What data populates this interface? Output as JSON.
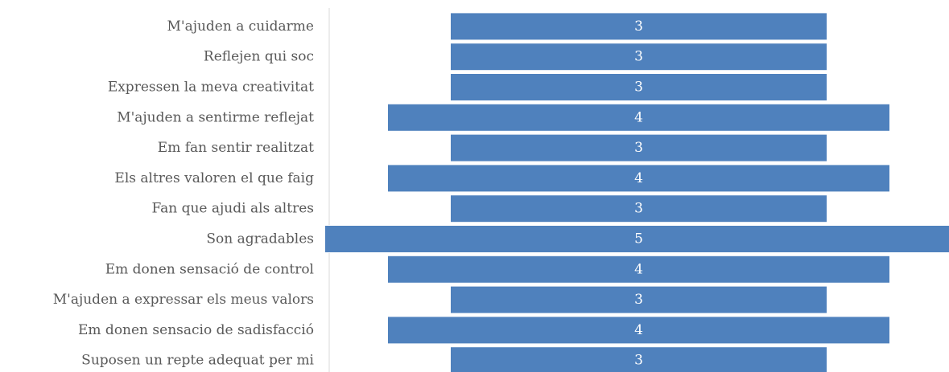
{
  "chart_data": {
    "type": "bar",
    "orientation": "horizontal",
    "centered": true,
    "categories": [
      "M'ajuden a cuidarme",
      "Reflejen qui soc",
      "Expressen la meva creativitat",
      "M'ajuden a sentirme reflejat",
      "Em fan sentir realitzat",
      "Els altres valoren el que faig",
      "Fan que ajudi als altres",
      "Son agradables",
      "Em donen sensació de control",
      "M'ajuden a expressar els meus valors",
      "Em donen sensacio de sadisfacció",
      "Suposen un repte adequat per mi"
    ],
    "values": [
      3,
      3,
      3,
      4,
      3,
      4,
      3,
      5,
      4,
      3,
      4,
      3
    ],
    "data_labels": true,
    "xlim": [
      0,
      5
    ],
    "grid": false,
    "legend": "none",
    "colors": {
      "bar": "#4f81bd",
      "bar_border": "#ffffff",
      "label_text": "#595959",
      "data_label_text": "#ffffff",
      "axis_line": "#d9d9d9"
    }
  }
}
